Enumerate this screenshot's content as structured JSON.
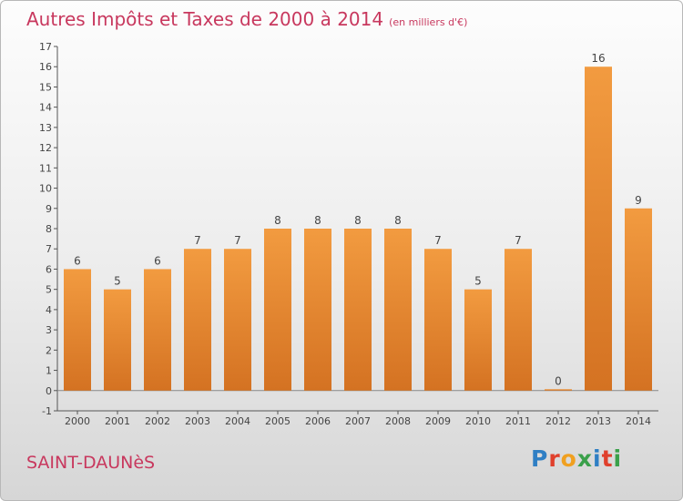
{
  "page": {
    "location": "SAINT-DAUNèS",
    "logo_letters": [
      {
        "ch": "P",
        "color": "#2f7fc4"
      },
      {
        "ch": "r",
        "color": "#e0402c"
      },
      {
        "ch": "o",
        "color": "#f0a020"
      },
      {
        "ch": "x",
        "color": "#3aa04a"
      },
      {
        "ch": "i",
        "color": "#2f7fc4"
      },
      {
        "ch": "t",
        "color": "#e0402c"
      },
      {
        "ch": "i",
        "color": "#3aa04a"
      }
    ]
  },
  "chart_data": {
    "type": "bar",
    "title": "Autres Impôts et Taxes de 2000 à 2014",
    "subtitle": "(en milliers d'€)",
    "xlabel": "",
    "ylabel": "",
    "categories": [
      "2000",
      "2001",
      "2002",
      "2003",
      "2004",
      "2005",
      "2006",
      "2007",
      "2008",
      "2009",
      "2010",
      "2011",
      "2012",
      "2013",
      "2014"
    ],
    "values": [
      6,
      5,
      6,
      7,
      7,
      8,
      8,
      8,
      8,
      7,
      5,
      7,
      0,
      16,
      9
    ],
    "data_labels": [
      "6",
      "5",
      "6",
      "7",
      "7",
      "8",
      "8",
      "8",
      "8",
      "7",
      "5",
      "7",
      "0",
      "16",
      "9"
    ],
    "ylim": [
      -1,
      17
    ],
    "yticks": [
      "-1",
      "0",
      "1",
      "2",
      "3",
      "4",
      "5",
      "6",
      "7",
      "8",
      "9",
      "10",
      "11",
      "12",
      "13",
      "14",
      "15",
      "16",
      "17"
    ],
    "grid": false,
    "bar_color": "#f29b40",
    "bar_color_dark": "#d47222"
  }
}
